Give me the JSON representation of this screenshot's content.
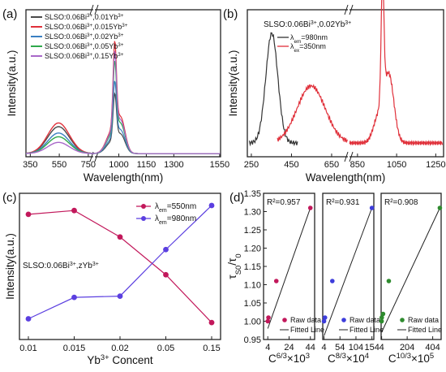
{
  "chart_data": [
    {
      "id": "a",
      "panel_label": "(a)",
      "type": "line",
      "xlabel": "Wavelength(nm)",
      "ylabel": "Intensity(a.u.)",
      "x_ticks_left": [
        350,
        550,
        750
      ],
      "x_ticks_right": [
        1000,
        1150,
        1300,
        1550
      ],
      "xlim_left": [
        320,
        790
      ],
      "xlim_right": [
        865,
        1555
      ],
      "legend_position": "top-left",
      "series": [
        {
          "name_parts": [
            "SLSO:0.06Bi",
            "3+",
            ",0.01Yb",
            "3+"
          ],
          "color": "#4a4a4a",
          "vis": 0.72,
          "nir": 1.2
        },
        {
          "name_parts": [
            "SLSO:0.06Bi",
            "3+",
            ",0.015Yb",
            "3+"
          ],
          "color": "#e0303a",
          "vis": 0.82,
          "nir": 2.25
        },
        {
          "name_parts": [
            "SLSO:0.06Bi",
            "3+",
            ",0.02Yb",
            "3+"
          ],
          "color": "#3a7fc2",
          "vis": 0.55,
          "nir": 1.45
        },
        {
          "name_parts": [
            "SLSO:0.06Bi",
            "3+",
            ",0.05Yb",
            "3+"
          ],
          "color": "#2ea84c",
          "vis": 0.45,
          "nir": 1.85
        },
        {
          "name_parts": [
            "SLSO:0.06Bi",
            "3+",
            ",0.15Yb",
            "3+"
          ],
          "color": "#a868c9",
          "vis": 0.3,
          "nir": 2.05
        }
      ]
    },
    {
      "id": "b",
      "panel_label": "(b)",
      "type": "line",
      "xlabel": "Wavelength(nm)",
      "ylabel": "Intensity(a.u.)",
      "title_parts": [
        "SLSO:0.06Bi",
        "3+",
        ",0.02Yb",
        "3+"
      ],
      "x_ticks_left": [
        250,
        450,
        650
      ],
      "x_ticks_right": [
        850,
        1050,
        1250
      ],
      "xlim_left": [
        230,
        735
      ],
      "xlim_right": [
        805,
        1290
      ],
      "legend_position": "top-left",
      "series": [
        {
          "name_parts": [
            "λ",
            "em",
            "=980nm"
          ],
          "color": "#333333",
          "kind": "excitation"
        },
        {
          "name_parts": [
            "λ",
            "ex",
            "=350nm"
          ],
          "color": "#e0303a",
          "kind": "emission"
        }
      ]
    },
    {
      "id": "c",
      "panel_label": "(c)",
      "type": "line",
      "xlabel_parts": [
        "Yb",
        "3+",
        " Concent"
      ],
      "ylabel": "Intensity(a.u.)",
      "annotation_parts": [
        "SLSO:0.06Bi",
        "3+",
        ",zYb",
        "3+"
      ],
      "categories": [
        "0.01",
        "0.015",
        "0.02",
        "0.05",
        "0.15"
      ],
      "legend_position": "top-right",
      "series": [
        {
          "name_parts": [
            "λ",
            "em",
            "=550nm"
          ],
          "color": "#c2185b",
          "marker": "circle",
          "values": [
            0.93,
            0.96,
            0.75,
            0.45,
            0.07
          ]
        },
        {
          "name_parts": [
            "λ",
            "em",
            "=980nm"
          ],
          "color": "#5b3fe0",
          "marker": "circle",
          "values": [
            0.1,
            0.27,
            0.28,
            0.65,
            1.0
          ]
        }
      ]
    },
    {
      "id": "d",
      "panel_label": "(d)",
      "type": "scatter",
      "ylabel": "τS0/τ0",
      "ylim": [
        0.95,
        1.35
      ],
      "y_ticks": [
        "0.95",
        "1.00",
        "1.05",
        "1.10",
        "1.15",
        "1.20",
        "1.25",
        "1.30",
        "1.35"
      ],
      "legend_labels": [
        "Raw data",
        "Fitted Line"
      ],
      "subplots": [
        {
          "r2": "R²=0.957",
          "xlabel_parts": [
            "C",
            "6/3",
            "×10",
            "3"
          ],
          "x_ticks": [
            "4",
            "24",
            "44"
          ],
          "xlim": [
            0,
            48
          ],
          "color": "#c2185b",
          "points": [
            [
              4,
              1.0
            ],
            [
              4.6,
              1.01
            ],
            [
              12,
              1.11
            ],
            [
              44,
              1.31
            ]
          ],
          "fit": [
            [
              4,
              0.98
            ],
            [
              44,
              1.31
            ]
          ]
        },
        {
          "r2": "R²=0.931",
          "xlabel_parts": [
            "C",
            "8/3",
            "×10",
            "4"
          ],
          "x_ticks": [
            "4",
            "54",
            "104",
            "154"
          ],
          "xlim": [
            0,
            160
          ],
          "color": "#3d3ddb",
          "points": [
            [
              4,
              1.0
            ],
            [
              7,
              1.01
            ],
            [
              30,
              1.11
            ],
            [
              154,
              1.31
            ]
          ],
          "fit": [
            [
              4,
              0.96
            ],
            [
              154,
              1.31
            ]
          ]
        },
        {
          "r2": "R²=0.908",
          "xlabel_parts": [
            "C",
            "10/3",
            "×10",
            "5"
          ],
          "x_ticks": [
            "4",
            "204",
            "404"
          ],
          "xlim": [
            0,
            470
          ],
          "color": "#2e8b2e",
          "points": [
            [
              4,
              1.0
            ],
            [
              5,
              1.01
            ],
            [
              15,
              1.02
            ],
            [
              60,
              1.11
            ],
            [
              460,
              1.31
            ]
          ],
          "fit": [
            [
              4,
              0.97
            ],
            [
              460,
              1.31
            ]
          ]
        }
      ]
    }
  ]
}
